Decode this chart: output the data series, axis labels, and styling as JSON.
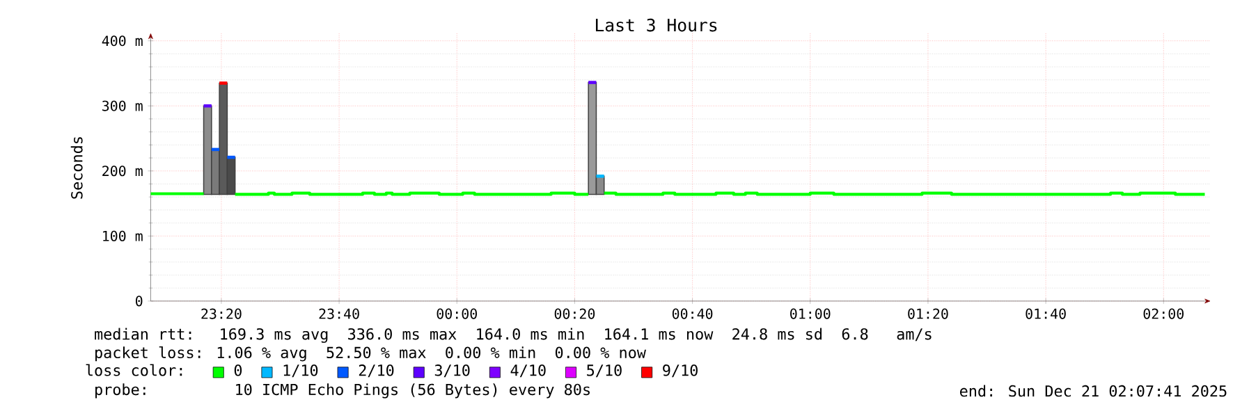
{
  "chart_data": {
    "type": "step",
    "title": "Last 3 Hours",
    "ylabel": "Seconds",
    "xlim": [
      "2025-12-20T23:08",
      "2025-12-21T02:08"
    ],
    "ylim": [
      0,
      412
    ],
    "xticks": [
      {
        "value": "2025-12-20T23:20",
        "label": "23:20"
      },
      {
        "value": "2025-12-20T23:40",
        "label": "23:40"
      },
      {
        "value": "2025-12-21T00:00",
        "label": "00:00"
      },
      {
        "value": "2025-12-21T00:20",
        "label": "00:20"
      },
      {
        "value": "2025-12-21T00:40",
        "label": "00:40"
      },
      {
        "value": "2025-12-21T01:00",
        "label": "01:00"
      },
      {
        "value": "2025-12-21T01:20",
        "label": "01:20"
      },
      {
        "value": "2025-12-21T01:40",
        "label": "01:40"
      },
      {
        "value": "2025-12-21T02:00",
        "label": "02:00"
      }
    ],
    "yticks": [
      {
        "value": 0,
        "label": "0"
      },
      {
        "value": 100,
        "label": "100 m"
      },
      {
        "value": 200,
        "label": "200 m"
      },
      {
        "value": 300,
        "label": "300 m"
      },
      {
        "value": 400,
        "label": "400 m"
      }
    ],
    "grid": true,
    "legend": "bottom",
    "legend_title": "loss color:",
    "series": [
      {
        "type": "bar",
        "color": "#7a7a7a",
        "colors": [
          "#8c8c8c",
          "#7a7a7a",
          "#5a5a5a",
          "#4a4a4a",
          "#9a9a9a",
          "#8a8a8a"
        ],
        "x": [
          "2025-12-20T23:17:00",
          "2025-12-20T23:18:20",
          "2025-12-20T23:19:40",
          "2025-12-20T23:21:00",
          "2025-12-21T00:22:20",
          "2025-12-21T00:23:40"
        ],
        "base": [
          164,
          164,
          164,
          164,
          164,
          164
        ],
        "values": [
          136,
          69,
          171,
          57,
          172,
          28
        ]
      },
      {
        "name": "0",
        "color": "#00ff00",
        "x": [
          "2025-12-20T23:08",
          "2025-12-20T23:17",
          "2025-12-20T23:22:20",
          "2025-12-20T23:28",
          "2025-12-20T23:29",
          "2025-12-20T23:32",
          "2025-12-20T23:35",
          "2025-12-20T23:44",
          "2025-12-20T23:46",
          "2025-12-20T23:48",
          "2025-12-20T23:49",
          "2025-12-20T23:52",
          "2025-12-20T23:57",
          "2025-12-21T00:01",
          "2025-12-21T00:03",
          "2025-12-21T00:16",
          "2025-12-21T00:20",
          "2025-12-21T00:22:20",
          "2025-12-21T00:25",
          "2025-12-21T00:27",
          "2025-12-21T00:35",
          "2025-12-21T00:37",
          "2025-12-21T00:44",
          "2025-12-21T00:47",
          "2025-12-21T00:49",
          "2025-12-21T00:51",
          "2025-12-21T01:00",
          "2025-12-21T01:04",
          "2025-12-21T01:19",
          "2025-12-21T01:24",
          "2025-12-21T01:51",
          "2025-12-21T01:53",
          "2025-12-21T01:56",
          "2025-12-21T02:02",
          "2025-12-21T02:07"
        ],
        "values": [
          165,
          null,
          164,
          166,
          164,
          166,
          164,
          166,
          164,
          166,
          164,
          166,
          164,
          166,
          164,
          166,
          164,
          null,
          166,
          164,
          166,
          164,
          166,
          164,
          166,
          164,
          166,
          164,
          166,
          164,
          166,
          164,
          166,
          164,
          164
        ]
      },
      {
        "name": "1/10",
        "type": "line",
        "color": "#00b8ff",
        "x": [
          "2025-12-21T00:23:40",
          "2025-12-21T00:25"
        ],
        "values": [
          192,
          192
        ]
      },
      {
        "name": "2/10",
        "type": "line",
        "color": "#0059ff",
        "x": [
          "2025-12-20T23:18:20",
          "2025-12-20T23:19:40"
        ],
        "values": [
          233,
          233
        ]
      },
      {
        "name": "3/10",
        "type": "line",
        "color": "#5e00ff",
        "x": [
          "2025-12-20T23:17",
          "2025-12-20T23:18:20"
        ],
        "values": [
          300,
          300
        ]
      },
      {
        "name": "4/10",
        "color": "#7e00ff"
      },
      {
        "name": "5/10",
        "color": "#dd00ff"
      },
      {
        "name": "9/10",
        "type": "line",
        "color": "#ff0000",
        "x": [
          "2025-12-20T23:19:40",
          "2025-12-20T23:21"
        ],
        "values": [
          335,
          335
        ]
      },
      {
        "type": "line",
        "color": "#0059ff",
        "x": [
          "2025-12-20T23:21",
          "2025-12-20T23:22:20"
        ],
        "values": [
          221,
          221
        ]
      },
      {
        "type": "line",
        "color": "#5e00ff",
        "x": [
          "2025-12-21T00:22:20",
          "2025-12-21T00:23:40"
        ],
        "values": [
          336,
          336
        ]
      }
    ],
    "annotations": [
      "median rtt:  169.3 ms avg  336.0 ms max  164.0 ms min  164.1 ms now  24.8 ms sd  6.8   am/s",
      "packet loss: 1.06 % avg  52.50 % max  0.00 % min  0.00 % now",
      "probe:       10 ICMP Echo Pings (56 Bytes) every 80s",
      "end: Sun Dec 21 02:07:41 2025"
    ]
  }
}
